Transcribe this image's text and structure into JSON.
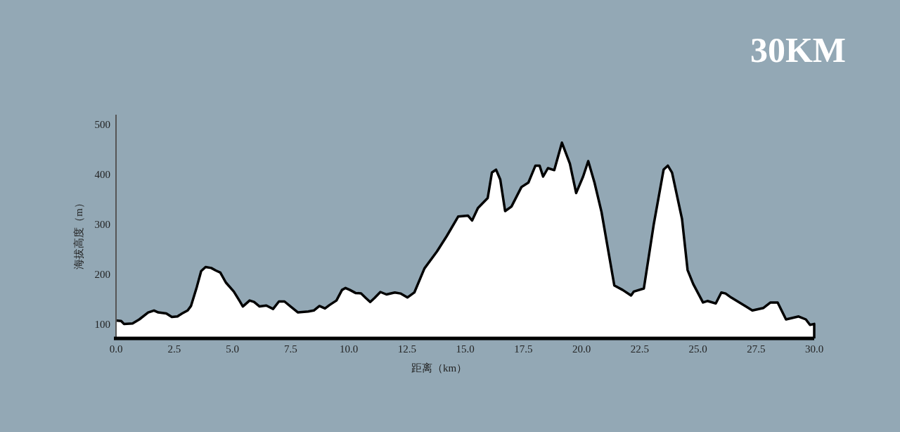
{
  "chart_data": {
    "type": "area",
    "title": "30KM",
    "xlabel": "距离（km）",
    "ylabel": "海拔高度（m）",
    "color": "#ffffff",
    "xlim": [
      0,
      30
    ],
    "ylim": [
      72,
      520
    ],
    "xticks": [
      {
        "value": 0,
        "label": "0.0"
      },
      2.5,
      {
        "value": 5,
        "label": "5.0"
      },
      7.5,
      {
        "value": 10,
        "label": "10.0"
      },
      12.5,
      {
        "value": 15,
        "label": "15.0"
      },
      17.5,
      {
        "value": 20,
        "label": "20.0"
      },
      22.5,
      {
        "value": 25,
        "label": "25.0"
      },
      27.5,
      {
        "value": 30,
        "label": "30.0"
      }
    ],
    "yticks": [
      100,
      200,
      300,
      400,
      500
    ],
    "x": [
      0,
      0.22,
      0.34,
      0.71,
      1.0,
      1.38,
      1.63,
      1.82,
      2.16,
      2.4,
      2.64,
      2.84,
      3.08,
      3.22,
      3.47,
      3.66,
      3.85,
      4.09,
      4.29,
      4.48,
      4.72,
      5.06,
      5.3,
      5.45,
      5.74,
      5.93,
      6.17,
      6.46,
      6.75,
      7.0,
      7.24,
      7.53,
      7.82,
      8.26,
      8.5,
      8.74,
      8.98,
      9.18,
      9.47,
      9.71,
      9.86,
      10.05,
      10.29,
      10.53,
      10.73,
      10.92,
      11.11,
      11.36,
      11.62,
      11.98,
      12.22,
      12.52,
      12.82,
      13.25,
      13.79,
      14.21,
      14.7,
      15.12,
      15.3,
      15.55,
      15.97,
      16.15,
      16.33,
      16.51,
      16.72,
      16.99,
      17.42,
      17.72,
      18.02,
      18.2,
      18.35,
      18.56,
      18.83,
      19.16,
      19.5,
      19.77,
      20.07,
      20.29,
      20.56,
      20.86,
      21.41,
      21.77,
      22.13,
      22.25,
      22.68,
      23.1,
      23.53,
      23.71,
      23.89,
      24.32,
      24.56,
      24.8,
      25.22,
      25.41,
      25.77,
      26.01,
      26.19,
      26.43,
      27.1,
      27.34,
      27.82,
      28.12,
      28.43,
      28.79,
      29.33,
      29.64,
      29.82,
      30
    ],
    "values": [
      108,
      107,
      101,
      102,
      110,
      124,
      128,
      124,
      122,
      115,
      116,
      122,
      128,
      137,
      175,
      207,
      215,
      213,
      208,
      204,
      184,
      166,
      148,
      136,
      148,
      145,
      136,
      138,
      131,
      146,
      146,
      135,
      124,
      126,
      128,
      137,
      132,
      139,
      148,
      169,
      173,
      169,
      163,
      162,
      153,
      145,
      153,
      165,
      160,
      164,
      162,
      154,
      164,
      212,
      246,
      277,
      316,
      318,
      308,
      333,
      353,
      404,
      410,
      390,
      327,
      336,
      375,
      384,
      418,
      418,
      396,
      413,
      409,
      464,
      422,
      363,
      396,
      427,
      384,
      325,
      178,
      169,
      158,
      166,
      172,
      299,
      410,
      418,
      404,
      311,
      209,
      181,
      144,
      147,
      142,
      164,
      162,
      154,
      135,
      128,
      133,
      144,
      144,
      110,
      116,
      110,
      99,
      101
    ]
  }
}
